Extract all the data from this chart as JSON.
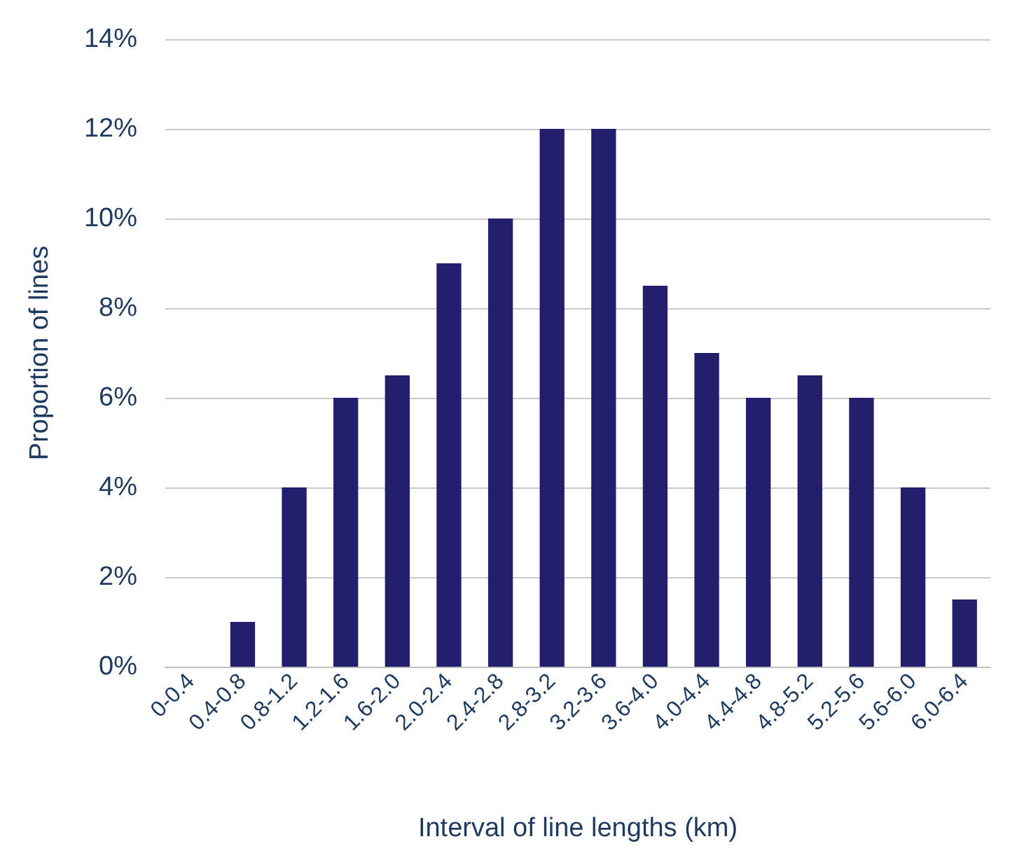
{
  "chart_data": {
    "type": "bar",
    "xlabel": "Interval of line lengths (km)",
    "ylabel": "Proportion of lines",
    "categories": [
      "0-0.4",
      "0.4-0.8",
      "0.8-1.2",
      "1.2-1.6",
      "1.6-2.0",
      "2.0-2.4",
      "2.4-2.8",
      "2.8-3.2",
      "3.2-3.6",
      "3.6-4.0",
      "4.0-4.4",
      "4.4-4.8",
      "4.8-5.2",
      "5.2-5.6",
      "5.6-6.0",
      "6.0-6.4"
    ],
    "values": [
      0,
      1,
      4,
      6,
      6.5,
      9,
      10,
      12,
      12,
      8.5,
      7,
      6,
      6.5,
      6,
      4,
      1.5
    ],
    "color": "#231f6c",
    "ylim": [
      0,
      14
    ],
    "yticks": [
      {
        "value": 0,
        "label": "0%"
      },
      {
        "value": 2,
        "label": "2%"
      },
      {
        "value": 4,
        "label": "4%"
      },
      {
        "value": 6,
        "label": "6%"
      },
      {
        "value": 8,
        "label": "8%"
      },
      {
        "value": 10,
        "label": "10%"
      },
      {
        "value": 12,
        "label": "12%"
      },
      {
        "value": 14,
        "label": "14%"
      }
    ],
    "grid": true
  }
}
